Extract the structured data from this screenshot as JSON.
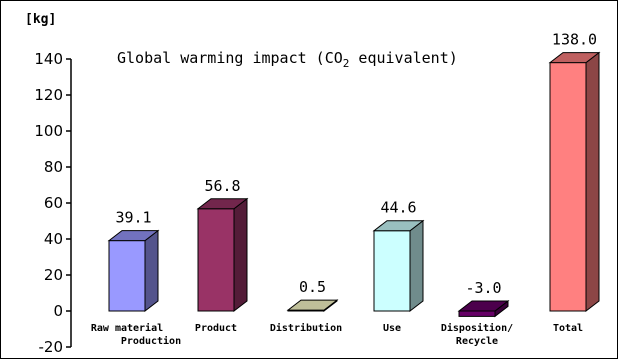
{
  "chart_data": {
    "type": "bar",
    "title": "Global warming impact (CO2 equivalent)",
    "title_main": "Global warming impact (CO",
    "title_sub": "2",
    "title_tail": " equivalent)",
    "unit": "[kg]",
    "ylim": [
      -20,
      140
    ],
    "yticks": [
      "-20",
      "0",
      "20",
      "40",
      "60",
      "80",
      "100",
      "120",
      "140"
    ],
    "categories": [
      [
        "Raw material",
        "Production"
      ],
      [
        "Product"
      ],
      [
        "Distribution"
      ],
      [
        "Use"
      ],
      [
        "Disposition/",
        "Recycle"
      ],
      [
        "Total"
      ]
    ],
    "values": [
      39.1,
      56.8,
      0.5,
      44.6,
      -3.0,
      138.0
    ],
    "value_labels": [
      "39.1",
      "56.8",
      "0.5",
      "44.6",
      "-3.0",
      "138.0"
    ],
    "colors": [
      {
        "front": "#9999ff",
        "side": "#54548c",
        "top": "#7272bf"
      },
      {
        "front": "#993366",
        "side": "#541c38",
        "top": "#72264c"
      },
      {
        "front": "#ffffcc",
        "side": "#8c8c70",
        "top": "#bfbf99"
      },
      {
        "front": "#ccffff",
        "side": "#708c8c",
        "top": "#99bfbf"
      },
      {
        "front": "#660066",
        "side": "#380038",
        "top": "#4c004c"
      },
      {
        "front": "#ff8080",
        "side": "#8c4646",
        "top": "#bf6060"
      }
    ],
    "grid": false,
    "legend": "none"
  }
}
